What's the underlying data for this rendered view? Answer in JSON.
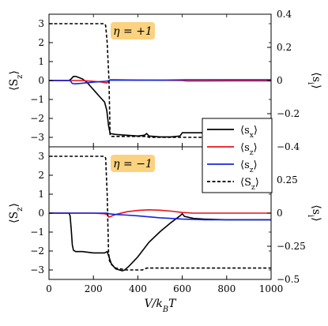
{
  "chart_data": [
    {
      "type": "line",
      "panel": "top",
      "badge": "η = +1",
      "badge_color": "#fbd27f",
      "xlabel": "V/k_BT",
      "ylabel_left": "⟨S_z⟩",
      "ylabel_right": "⟨s_i⟩",
      "xlim": [
        0,
        1000
      ],
      "ylim_left": [
        -3.5,
        3.5
      ],
      "ylim_right": [
        -0.4,
        0.4
      ],
      "y_ticks_left": [
        3,
        2,
        1,
        0,
        -1,
        -2,
        -3
      ],
      "y_ticks_right": [
        0.4,
        0.2,
        0,
        -0.2,
        -0.4
      ],
      "y_tick_labels_right": [
        "0.4",
        "0.2",
        "0",
        "−0.2",
        "−0.4"
      ],
      "grid": false,
      "series": [
        {
          "name": "⟨s_x⟩",
          "axis": "right",
          "color": "#000000",
          "dash": "solid",
          "x": [
            0,
            90,
            100,
            110,
            120,
            130,
            150,
            170,
            190,
            210,
            230,
            250,
            260,
            268,
            275,
            300,
            350,
            400,
            430,
            440,
            450,
            500,
            550,
            590,
            600,
            620,
            700,
            800,
            900,
            1000
          ],
          "y": [
            0,
            0,
            0.01,
            0.025,
            0.025,
            0.02,
            0.01,
            -0.01,
            -0.04,
            -0.07,
            -0.1,
            -0.13,
            -0.18,
            -0.27,
            -0.32,
            -0.325,
            -0.33,
            -0.335,
            -0.33,
            -0.32,
            -0.335,
            -0.34,
            -0.34,
            -0.335,
            -0.315,
            -0.315,
            -0.315,
            -0.315,
            -0.315,
            -0.315
          ]
        },
        {
          "name": "⟨s_z⟩",
          "axis": "right",
          "color": "#e8131b",
          "dash": "solid",
          "x": [
            0,
            100,
            150,
            200,
            240,
            260,
            268,
            275,
            300,
            400,
            500,
            600,
            620,
            700,
            800,
            900,
            1000
          ],
          "y": [
            0,
            0,
            0,
            -0.005,
            -0.01,
            -0.015,
            -0.005,
            0.005,
            0.005,
            0.003,
            0.002,
            0.0,
            -0.003,
            -0.003,
            -0.002,
            -0.002,
            -0.002
          ]
        },
        {
          "name": "⟨s_z⟩",
          "axis": "right",
          "color": "#1424e0",
          "dash": "solid",
          "x": [
            0,
            95,
            105,
            120,
            150,
            200,
            250,
            268,
            275,
            300,
            400,
            500,
            600,
            620,
            700,
            800,
            900,
            1000
          ],
          "y": [
            0,
            0,
            -0.018,
            -0.02,
            -0.016,
            -0.01,
            -0.005,
            -0.002,
            0.003,
            0.002,
            0.002,
            0.002,
            0.004,
            0.005,
            0.005,
            0.005,
            0.005,
            0.005
          ]
        },
        {
          "name": "⟨S_z⟩",
          "axis": "left",
          "color": "#000000",
          "dash": "dashed",
          "x": [
            0,
            250,
            255,
            262,
            270,
            275,
            280,
            300,
            350,
            400,
            440,
            450,
            500,
            600,
            700,
            800,
            900,
            1000
          ],
          "y": [
            3.0,
            3.0,
            2.9,
            2.0,
            0.0,
            -2.9,
            -2.95,
            -2.95,
            -2.95,
            -2.95,
            -2.95,
            -3.0,
            -3.0,
            -3.0,
            -3.0,
            -3.0,
            -3.0,
            -3.0
          ]
        }
      ]
    },
    {
      "type": "line",
      "panel": "bottom",
      "badge": "η = −1",
      "badge_color": "#fbd27f",
      "xlabel": "V/k_BT",
      "ylabel_left": "⟨S_z⟩",
      "ylabel_right": "⟨s_i⟩",
      "xlim": [
        0,
        1000
      ],
      "ylim_left": [
        -3.5,
        3.5
      ],
      "ylim_right": [
        -0.5,
        0.5
      ],
      "y_ticks_left": [
        3,
        2,
        1,
        0,
        -1,
        -2,
        -3
      ],
      "y_ticks_right": [
        0.25,
        0,
        -0.25,
        -0.5
      ],
      "y_tick_labels_right": [
        "0.25",
        "0",
        "−0.25",
        "−0.5"
      ],
      "x_ticks": [
        0,
        200,
        400,
        600,
        800,
        1000
      ],
      "grid": false,
      "legend": {
        "placement": "right",
        "entries": [
          {
            "label": "⟨s_x⟩",
            "color": "#000000",
            "dash": "solid"
          },
          {
            "label": "⟨s_z⟩",
            "color": "#e8131b",
            "dash": "solid"
          },
          {
            "label": "⟨s_z⟩",
            "color": "#1424e0",
            "dash": "solid"
          },
          {
            "label": "⟨S_z⟩",
            "color": "#000000",
            "dash": "dashed"
          }
        ]
      },
      "series": [
        {
          "name": "⟨s_x⟩",
          "axis": "right",
          "color": "#000000",
          "dash": "solid",
          "x": [
            0,
            90,
            95,
            100,
            105,
            110,
            120,
            150,
            200,
            250,
            262,
            270,
            280,
            300,
            330,
            340,
            360,
            400,
            450,
            500,
            550,
            590,
            600,
            610,
            650,
            700,
            800,
            900,
            1000
          ],
          "y": [
            0,
            0,
            -0.02,
            -0.12,
            -0.24,
            -0.28,
            -0.29,
            -0.29,
            -0.3,
            -0.3,
            -0.29,
            -0.33,
            -0.38,
            -0.42,
            -0.435,
            -0.43,
            -0.4,
            -0.33,
            -0.22,
            -0.14,
            -0.07,
            -0.02,
            -0.005,
            -0.025,
            -0.04,
            -0.045,
            -0.05,
            -0.05,
            -0.05
          ]
        },
        {
          "name": "⟨s_z⟩",
          "axis": "right",
          "color": "#e8131b",
          "dash": "solid",
          "x": [
            0,
            100,
            150,
            200,
            250,
            262,
            270,
            300,
            350,
            400,
            450,
            500,
            550,
            600,
            650,
            700,
            800,
            900,
            1000
          ],
          "y": [
            0,
            0,
            0,
            0,
            -0.005,
            -0.01,
            -0.03,
            -0.01,
            0.01,
            0.02,
            0.025,
            0.022,
            0.015,
            0.005,
            0.0,
            0.0,
            0.0,
            0.0,
            0.0
          ]
        },
        {
          "name": "⟨s_z⟩",
          "axis": "right",
          "color": "#1424e0",
          "dash": "solid",
          "x": [
            0,
            100,
            150,
            200,
            250,
            262,
            270,
            300,
            350,
            400,
            450,
            500,
            550,
            600,
            650,
            700,
            800,
            900,
            1000
          ],
          "y": [
            0,
            0,
            0,
            0,
            0.0,
            0.0,
            -0.005,
            -0.01,
            -0.015,
            -0.02,
            -0.028,
            -0.035,
            -0.04,
            -0.045,
            -0.047,
            -0.05,
            -0.05,
            -0.05,
            -0.05
          ]
        },
        {
          "name": "⟨S_z⟩",
          "axis": "left",
          "color": "#000000",
          "dash": "dashed",
          "x": [
            0,
            250,
            255,
            262,
            268,
            272,
            280,
            300,
            350,
            400,
            420,
            430,
            440,
            450,
            500,
            600,
            700,
            800,
            900,
            1000
          ],
          "y": [
            3.0,
            3.0,
            2.9,
            1.0,
            -2.0,
            -2.5,
            -2.7,
            -2.9,
            -3.0,
            -3.0,
            -3.0,
            -2.95,
            -2.9,
            -2.9,
            -2.9,
            -2.9,
            -2.9,
            -2.9,
            -2.9,
            -2.9
          ]
        }
      ]
    }
  ]
}
